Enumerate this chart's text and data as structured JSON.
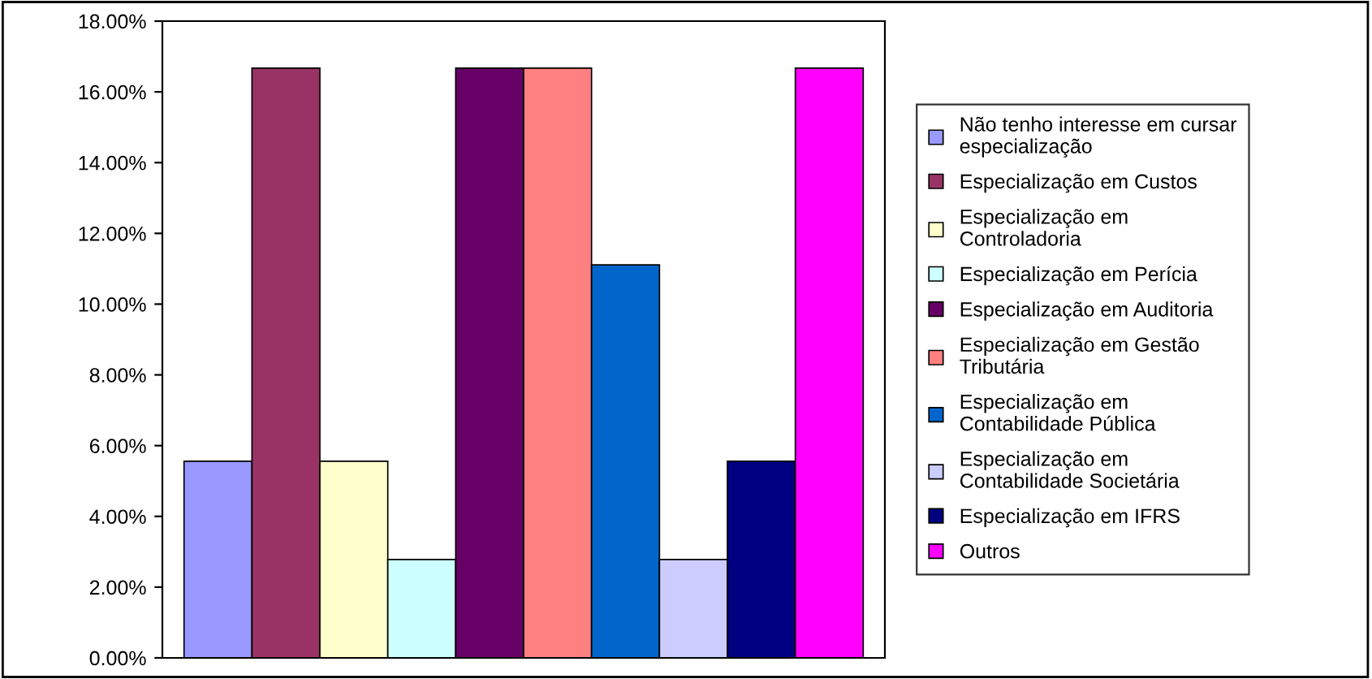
{
  "chart_data": {
    "type": "bar",
    "categories": [
      null
    ],
    "series": [
      {
        "name": "Não tenho interesse em cursar\nespecialização",
        "color": "#9999ff",
        "values": [
          5.56
        ]
      },
      {
        "name": "Especialização em Custos",
        "color": "#993366",
        "values": [
          16.67
        ]
      },
      {
        "name": "Especialização em\nControladoria",
        "color": "#ffffcc",
        "values": [
          5.56
        ]
      },
      {
        "name": "Especialização em Perícia",
        "color": "#ccffff",
        "values": [
          2.78
        ]
      },
      {
        "name": "Especialização em Auditoria",
        "color": "#660066",
        "values": [
          16.67
        ]
      },
      {
        "name": "Especialização em Gestão\nTributária",
        "color": "#ff8080",
        "values": [
          16.67
        ]
      },
      {
        "name": "Especialização em\nContabilidade Pública",
        "color": "#0066cc",
        "values": [
          11.11
        ]
      },
      {
        "name": "Especialização em\nContabilidade Societária",
        "color": "#ccccff",
        "values": [
          2.78
        ]
      },
      {
        "name": "Especialização em IFRS",
        "color": "#000080",
        "values": [
          5.56
        ]
      },
      {
        "name": "Outros",
        "color": "#ff00ff",
        "values": [
          16.67
        ]
      }
    ],
    "ylim": [
      0,
      18
    ],
    "yticks": [
      {
        "value": 0,
        "label": "0.00%"
      },
      {
        "value": 2,
        "label": "2.00%"
      },
      {
        "value": 4,
        "label": "4.00%"
      },
      {
        "value": 6,
        "label": "6.00%"
      },
      {
        "value": 8,
        "label": "8.00%"
      },
      {
        "value": 10,
        "label": "10.00%"
      },
      {
        "value": 12,
        "label": "12.00%"
      },
      {
        "value": 14,
        "label": "14.00%"
      },
      {
        "value": 16,
        "label": "16.00%"
      },
      {
        "value": 18,
        "label": "18.00%"
      }
    ],
    "grid": false,
    "legend": "right"
  }
}
